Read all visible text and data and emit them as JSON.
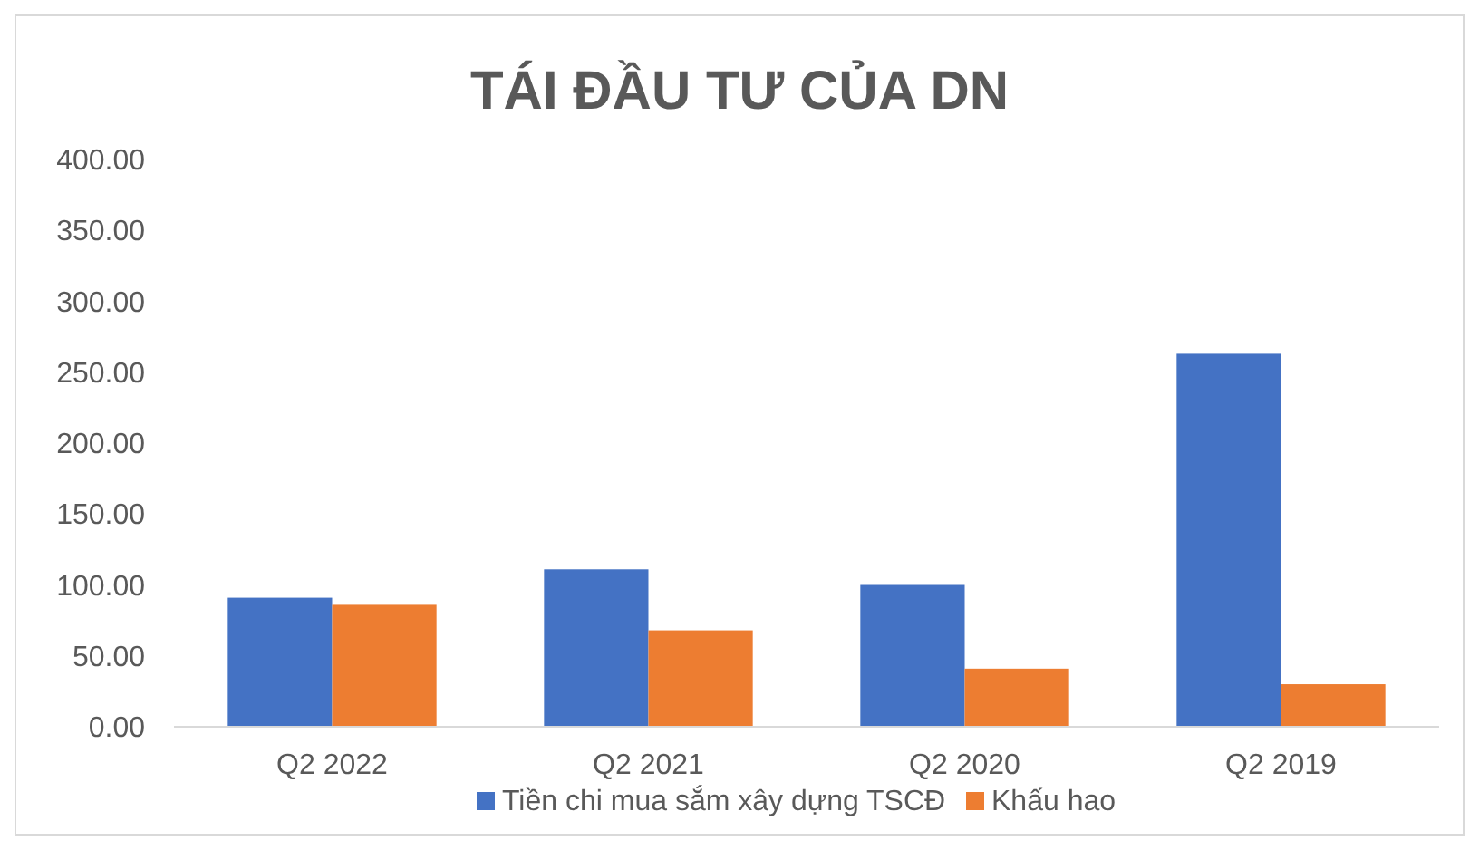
{
  "chart_data": {
    "type": "bar",
    "title": "TÁI ĐẦU TƯ CỦA DN",
    "categories": [
      "Q2 2022",
      "Q2 2021",
      "Q2 2020",
      "Q2 2019"
    ],
    "series": [
      {
        "name": "Tiền chi mua sắm xây dựng TSCĐ",
        "color": "#4472c4",
        "values": [
          91,
          111,
          100,
          263
        ]
      },
      {
        "name": "Khấu hao",
        "color": "#ed7d31",
        "values": [
          86,
          68,
          41,
          30
        ]
      }
    ],
    "ylim": [
      0,
      400
    ],
    "yticks": [
      {
        "value": 0,
        "label": "0.00"
      },
      {
        "value": 50,
        "label": "50.00"
      },
      {
        "value": 100,
        "label": "100.00"
      },
      {
        "value": 150,
        "label": "150.00"
      },
      {
        "value": 200,
        "label": "200.00"
      },
      {
        "value": 250,
        "label": "250.00"
      },
      {
        "value": 300,
        "label": "300.00"
      },
      {
        "value": 350,
        "label": "350.00"
      },
      {
        "value": 400,
        "label": "400.00"
      }
    ],
    "grid": false,
    "legend": "bottom"
  }
}
